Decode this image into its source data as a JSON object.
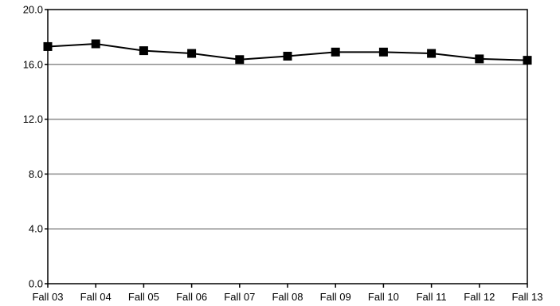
{
  "chart_data": {
    "type": "line",
    "title": "",
    "xlabel": "",
    "ylabel": "",
    "categories": [
      "Fall 03",
      "Fall 04",
      "Fall 05",
      "Fall 06",
      "Fall 07",
      "Fall 08",
      "Fall 09",
      "Fall 10",
      "Fall 11",
      "Fall 12",
      "Fall 13"
    ],
    "series": [
      {
        "values": [
          17.3,
          17.5,
          17.0,
          16.8,
          16.35,
          16.6,
          16.9,
          16.9,
          16.8,
          16.4,
          16.3
        ]
      }
    ],
    "ylim": [
      0,
      20
    ],
    "yticks": [
      0,
      4,
      8,
      12,
      16,
      20
    ],
    "ytick_labels": [
      "0.0",
      "4.0",
      "8.0",
      "12.0",
      "16.0",
      "20.0"
    ],
    "grid": true,
    "legend": "none",
    "colors": {
      "line": "#000000",
      "grid": "#8c8c8c",
      "axis": "#000000"
    }
  }
}
